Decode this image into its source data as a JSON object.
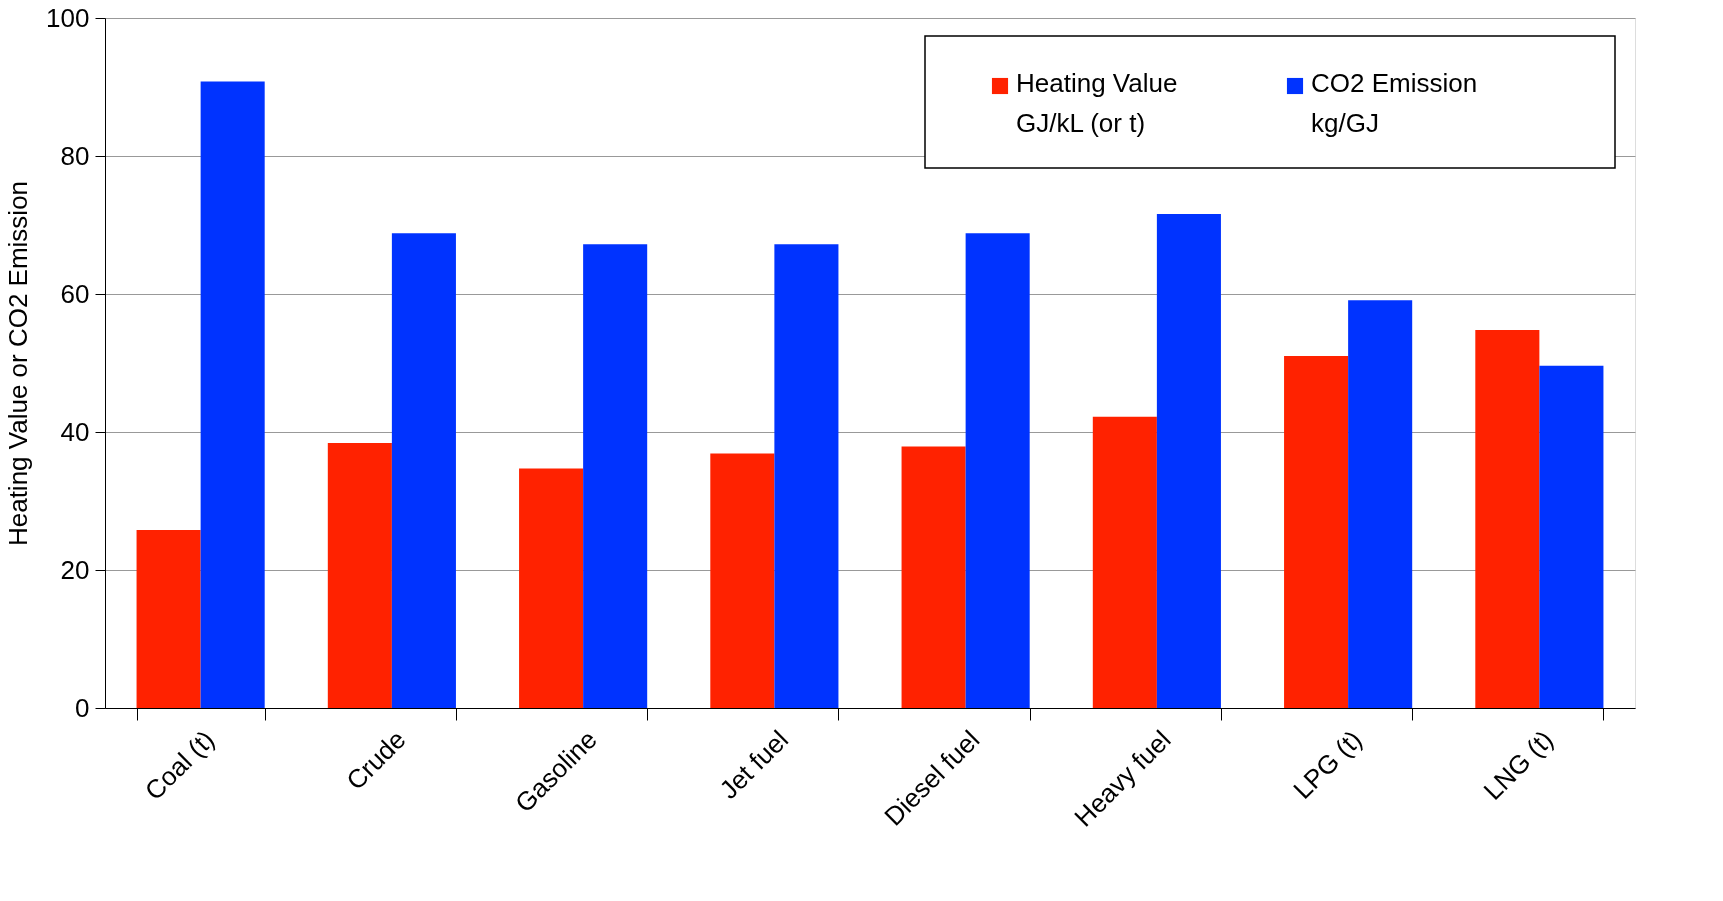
{
  "chart_data": {
    "type": "bar",
    "ylabel": "Heating Value or CO2 Emission",
    "categories": [
      "Coal (t)",
      "Crude",
      "Gasoline",
      "Jet fuel",
      "Diesel fuel",
      "Heavy fuel",
      "LPG (t)",
      "LNG (t)"
    ],
    "series": [
      {
        "name": "Heating Value\nGJ/kL (or t)",
        "color": "#ff2200",
        "values": [
          25.8,
          38.4,
          34.7,
          36.9,
          37.9,
          42.2,
          51.0,
          54.8
        ]
      },
      {
        "name": "CO2 Emission\nkg/GJ",
        "color": "#0033ff",
        "values": [
          90.8,
          68.8,
          67.2,
          67.2,
          68.8,
          71.6,
          59.1,
          49.6
        ]
      }
    ],
    "ylim": [
      0,
      100
    ],
    "yticks": [
      0,
      20,
      40,
      60,
      80,
      100
    ],
    "grid": "y",
    "legend": "top right"
  }
}
